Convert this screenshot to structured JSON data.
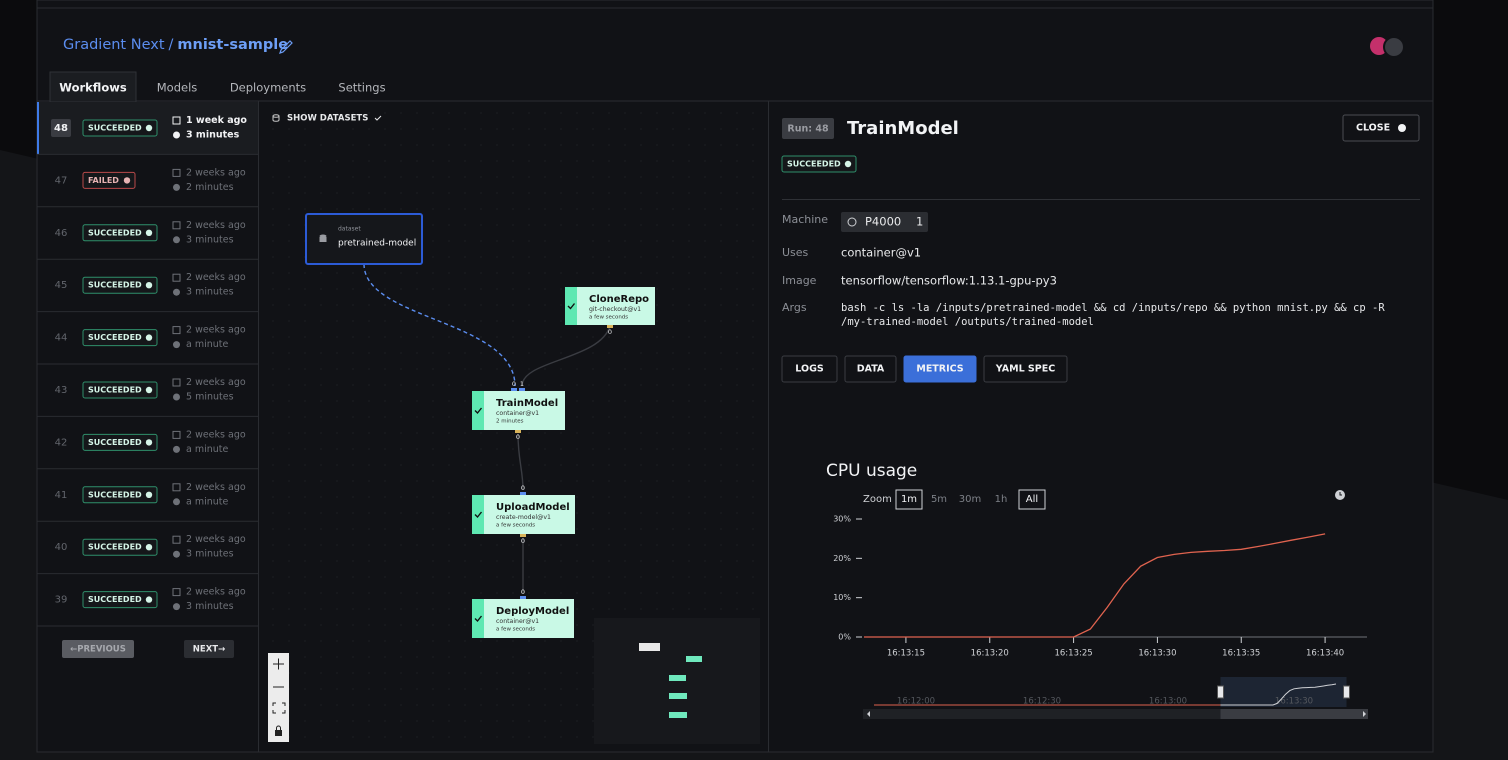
{
  "header": {
    "project": "Gradient Next",
    "separator": "/",
    "name": "mnist-sample"
  },
  "tabs": [
    "Workflows",
    "Models",
    "Deployments",
    "Settings"
  ],
  "runs": [
    {
      "id": "48",
      "status": "SUCCEEDED",
      "date": "1 week ago",
      "duration": "3 minutes"
    },
    {
      "id": "47",
      "status": "FAILED",
      "date": "2 weeks ago",
      "duration": "2 minutes"
    },
    {
      "id": "46",
      "status": "SUCCEEDED",
      "date": "2 weeks ago",
      "duration": "3 minutes"
    },
    {
      "id": "45",
      "status": "SUCCEEDED",
      "date": "2 weeks ago",
      "duration": "3 minutes"
    },
    {
      "id": "44",
      "status": "SUCCEEDED",
      "date": "2 weeks ago",
      "duration": "a minute"
    },
    {
      "id": "43",
      "status": "SUCCEEDED",
      "date": "2 weeks ago",
      "duration": "5 minutes"
    },
    {
      "id": "42",
      "status": "SUCCEEDED",
      "date": "2 weeks ago",
      "duration": "a minute"
    },
    {
      "id": "41",
      "status": "SUCCEEDED",
      "date": "2 weeks ago",
      "duration": "a minute"
    },
    {
      "id": "40",
      "status": "SUCCEEDED",
      "date": "2 weeks ago",
      "duration": "3 minutes"
    },
    {
      "id": "39",
      "status": "SUCCEEDED",
      "date": "2 weeks ago",
      "duration": "3 minutes"
    }
  ],
  "pagination": {
    "previous": "←PREVIOUS",
    "next": "NEXT→"
  },
  "graph": {
    "toggle": "SHOW DATASETS",
    "nodes": [
      {
        "kind": "dataset",
        "label": "pretrained-model"
      },
      {
        "label": "CloneRepo",
        "uses": "git-checkout@v1",
        "time": "a few seconds",
        "outputs": [
          "0"
        ]
      },
      {
        "label": "TrainModel",
        "uses": "container@v1",
        "time": "2 minutes",
        "inputs": [
          "0",
          "1"
        ],
        "outputs": [
          "0"
        ]
      },
      {
        "label": "UploadModel",
        "uses": "create-model@v1",
        "time": "a few seconds",
        "inputs": [
          "0"
        ],
        "outputs": [
          "0"
        ]
      },
      {
        "label": "DeployModel",
        "uses": "container@v1",
        "time": "a few seconds",
        "inputs": [
          "0"
        ]
      }
    ]
  },
  "detail": {
    "run": "Run: 48",
    "title": "TrainModel",
    "close": "CLOSE",
    "status": "SUCCEEDED",
    "machine": {
      "label": "Machine",
      "type": "P4000",
      "count": "1"
    },
    "fields": [
      {
        "label": "Uses",
        "value": [
          "container@v1"
        ]
      },
      {
        "label": "Image",
        "value": [
          "tensorflow/tensorflow:1.13.1-gpu-py3"
        ]
      },
      {
        "label": "Args",
        "value": [
          "bash -c ls -la /inputs/pretrained-model && cd /inputs/repo && python mnist.py && cp -R",
          "/my-trained-model /outputs/trained-model"
        ]
      }
    ],
    "buttons": [
      "LOGS",
      "DATA",
      "METRICS",
      "YAML SPEC"
    ],
    "active_button": 2
  },
  "chart_data": {
    "type": "line",
    "title": "CPU usage",
    "zoom_label": "Zoom",
    "zoom_options": [
      "1m",
      "5m",
      "30m",
      "1h",
      "All"
    ],
    "zoom_selected": [
      0,
      4
    ],
    "x": [
      "16:11:50",
      "16:12:30",
      "16:13:00",
      "16:13:13",
      "16:13:20",
      "16:13:24",
      "16:13:25",
      "16:13:26",
      "16:13:27",
      "16:13:28",
      "16:13:29",
      "16:13:30",
      "16:13:31",
      "16:13:32",
      "16:13:33",
      "16:13:34",
      "16:13:35",
      "16:13:36",
      "16:13:37",
      "16:13:38",
      "16:13:39",
      "16:13:40"
    ],
    "values": [
      0,
      0,
      0,
      0,
      0,
      0,
      0,
      2,
      7.5,
      13.5,
      18,
      20.2,
      21,
      21.5,
      21.8,
      22,
      22.3,
      23,
      23.8,
      24.6,
      25.4,
      26.2
    ],
    "color": "#e0634f",
    "xlim": [
      "16:13:12.5",
      "16:13:42.5"
    ],
    "xticks": [
      "16:13:15",
      "16:13:20",
      "16:13:25",
      "16:13:30",
      "16:13:35",
      "16:13:40"
    ],
    "ylim": [
      0,
      30
    ],
    "yticks": [
      {
        "value": 0,
        "label": "0%"
      },
      {
        "value": 10,
        "label": "10%"
      },
      {
        "value": 20,
        "label": "20%"
      },
      {
        "value": 30,
        "label": "30%"
      }
    ],
    "navigator": {
      "xlim": [
        "16:11:50",
        "16:13:45"
      ],
      "xticks": [
        "16:12:00",
        "16:12:30",
        "16:13:00",
        "16:13:30"
      ]
    }
  }
}
